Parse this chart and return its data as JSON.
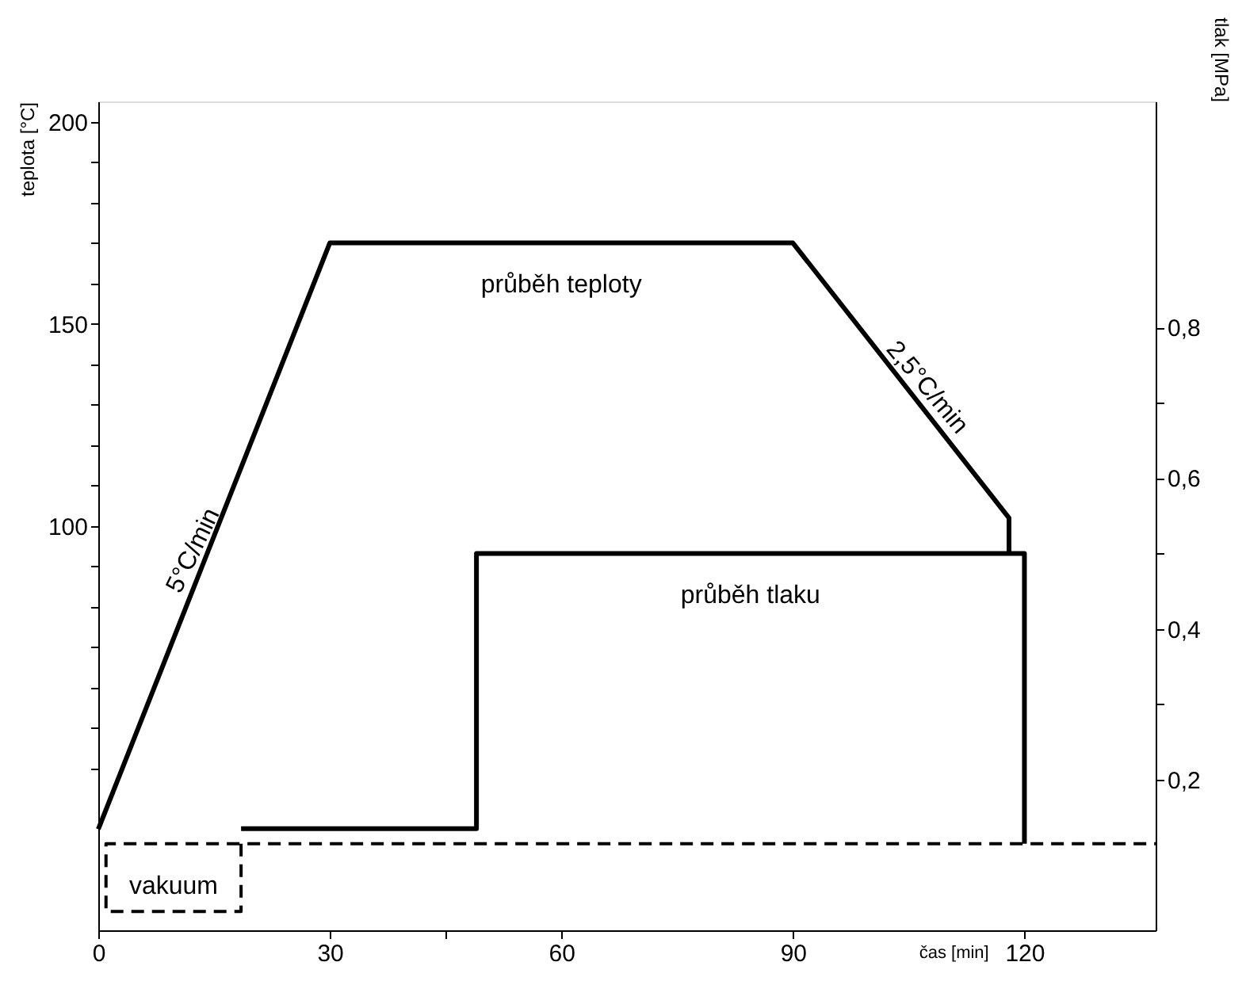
{
  "chart_data": {
    "type": "line",
    "xlabel": "čas [min]",
    "ylabel": "teplota [°C]",
    "y2label": "tlak [MPa]",
    "xlim": [
      0,
      137
    ],
    "xticks": [
      0,
      30,
      {
        "value": 45,
        "label": null
      },
      60,
      90,
      120
    ],
    "ylim": [
      0,
      205
    ],
    "yticks": [
      {
        "value": 40,
        "label": null
      },
      {
        "value": 50,
        "label": null
      },
      {
        "value": 60,
        "label": null
      },
      {
        "value": 70,
        "label": null
      },
      {
        "value": 80,
        "label": null
      },
      {
        "value": 90,
        "label": null
      },
      100,
      {
        "value": 110,
        "label": null
      },
      {
        "value": 120,
        "label": null
      },
      {
        "value": 130,
        "label": null
      },
      {
        "value": 140,
        "label": null
      },
      150,
      {
        "value": 160,
        "label": null
      },
      {
        "value": 170,
        "label": null
      },
      {
        "value": 180,
        "label": null
      },
      {
        "value": 190,
        "label": null
      },
      200
    ],
    "y2lim": [
      0,
      1.1
    ],
    "y2ticks": [
      {
        "value": 0.2,
        "label": "0,2"
      },
      {
        "value": 0.3,
        "label": null
      },
      {
        "value": 0.4,
        "label": "0,4"
      },
      {
        "value": 0.5,
        "label": null
      },
      {
        "value": 0.6,
        "label": "0,6"
      },
      {
        "value": 0.7,
        "label": null
      },
      {
        "value": 0.8,
        "label": "0,8"
      }
    ],
    "grid": false,
    "legend": false,
    "marker": "none",
    "series": [
      {
        "name": "průběh teploty",
        "color": "#000000",
        "x": [
          0,
          30,
          90,
          118,
          118
        ],
        "values": [
          25,
          170,
          170,
          102,
          93
        ]
      },
      {
        "name": "průběh tlaku",
        "color": "#000000",
        "axis": "y2",
        "x": [
          18.5,
          49,
          49,
          120,
          120
        ],
        "values": [
          0.135,
          0.135,
          0.5,
          0.5,
          0.115
        ]
      },
      {
        "name": "vakuum",
        "color": "#000000",
        "axis": "y2",
        "line_style": "dashed",
        "x": [
          18.5,
          18.5,
          1,
          1,
          137
        ],
        "values": [
          0.115,
          0.025,
          0.025,
          0.115,
          0.115
        ]
      }
    ],
    "annotations": [
      "5°C/min",
      "2,5°C/min"
    ]
  }
}
